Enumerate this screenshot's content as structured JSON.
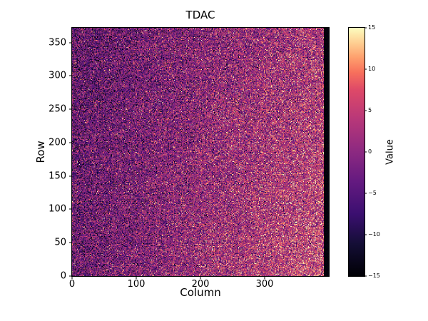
{
  "chart_data": {
    "type": "heatmap",
    "title": "TDAC",
    "xlabel": "Column",
    "ylabel": "Row",
    "colorbar_label": "Value",
    "x_range": [
      0,
      400
    ],
    "y_range": [
      0,
      372
    ],
    "value_range": [
      -15,
      15
    ],
    "x_ticks": [
      0,
      100,
      200,
      300
    ],
    "y_ticks": [
      0,
      50,
      100,
      150,
      200,
      250,
      300,
      350
    ],
    "colorbar_ticks": [
      15,
      10,
      5,
      0,
      -5,
      -10,
      -15
    ],
    "colormap": "magma",
    "colormap_stops": [
      {
        "t": 0.0,
        "color": "#000004"
      },
      {
        "t": 0.13,
        "color": "#140e36"
      },
      {
        "t": 0.25,
        "color": "#3b0f70"
      },
      {
        "t": 0.38,
        "color": "#641a80"
      },
      {
        "t": 0.5,
        "color": "#8c2981"
      },
      {
        "t": 0.63,
        "color": "#b73779"
      },
      {
        "t": 0.75,
        "color": "#de4968"
      },
      {
        "t": 0.82,
        "color": "#f7705c"
      },
      {
        "t": 0.88,
        "color": "#fe9f6d"
      },
      {
        "t": 0.94,
        "color": "#fecf92"
      },
      {
        "t": 1.0,
        "color": "#fcfdbf"
      }
    ],
    "pattern": {
      "description": "Noisy per-pixel TDAC tuning map: heavy random speckle (clipped bright-yellow and black dots) over a smooth gradient that is darkest toward the upper-left and brightest pink/orange toward the right and lower-right; a near-black dead band of columns runs along the far right edge of the map.",
      "seed": 42,
      "noise_sigma": 6.5,
      "mean_base": -4.5,
      "mean_x_slope": 7.5,
      "mean_y_slope": 3.0,
      "dead_columns": [
        392,
        399
      ]
    },
    "background_color": "#ffffff"
  }
}
